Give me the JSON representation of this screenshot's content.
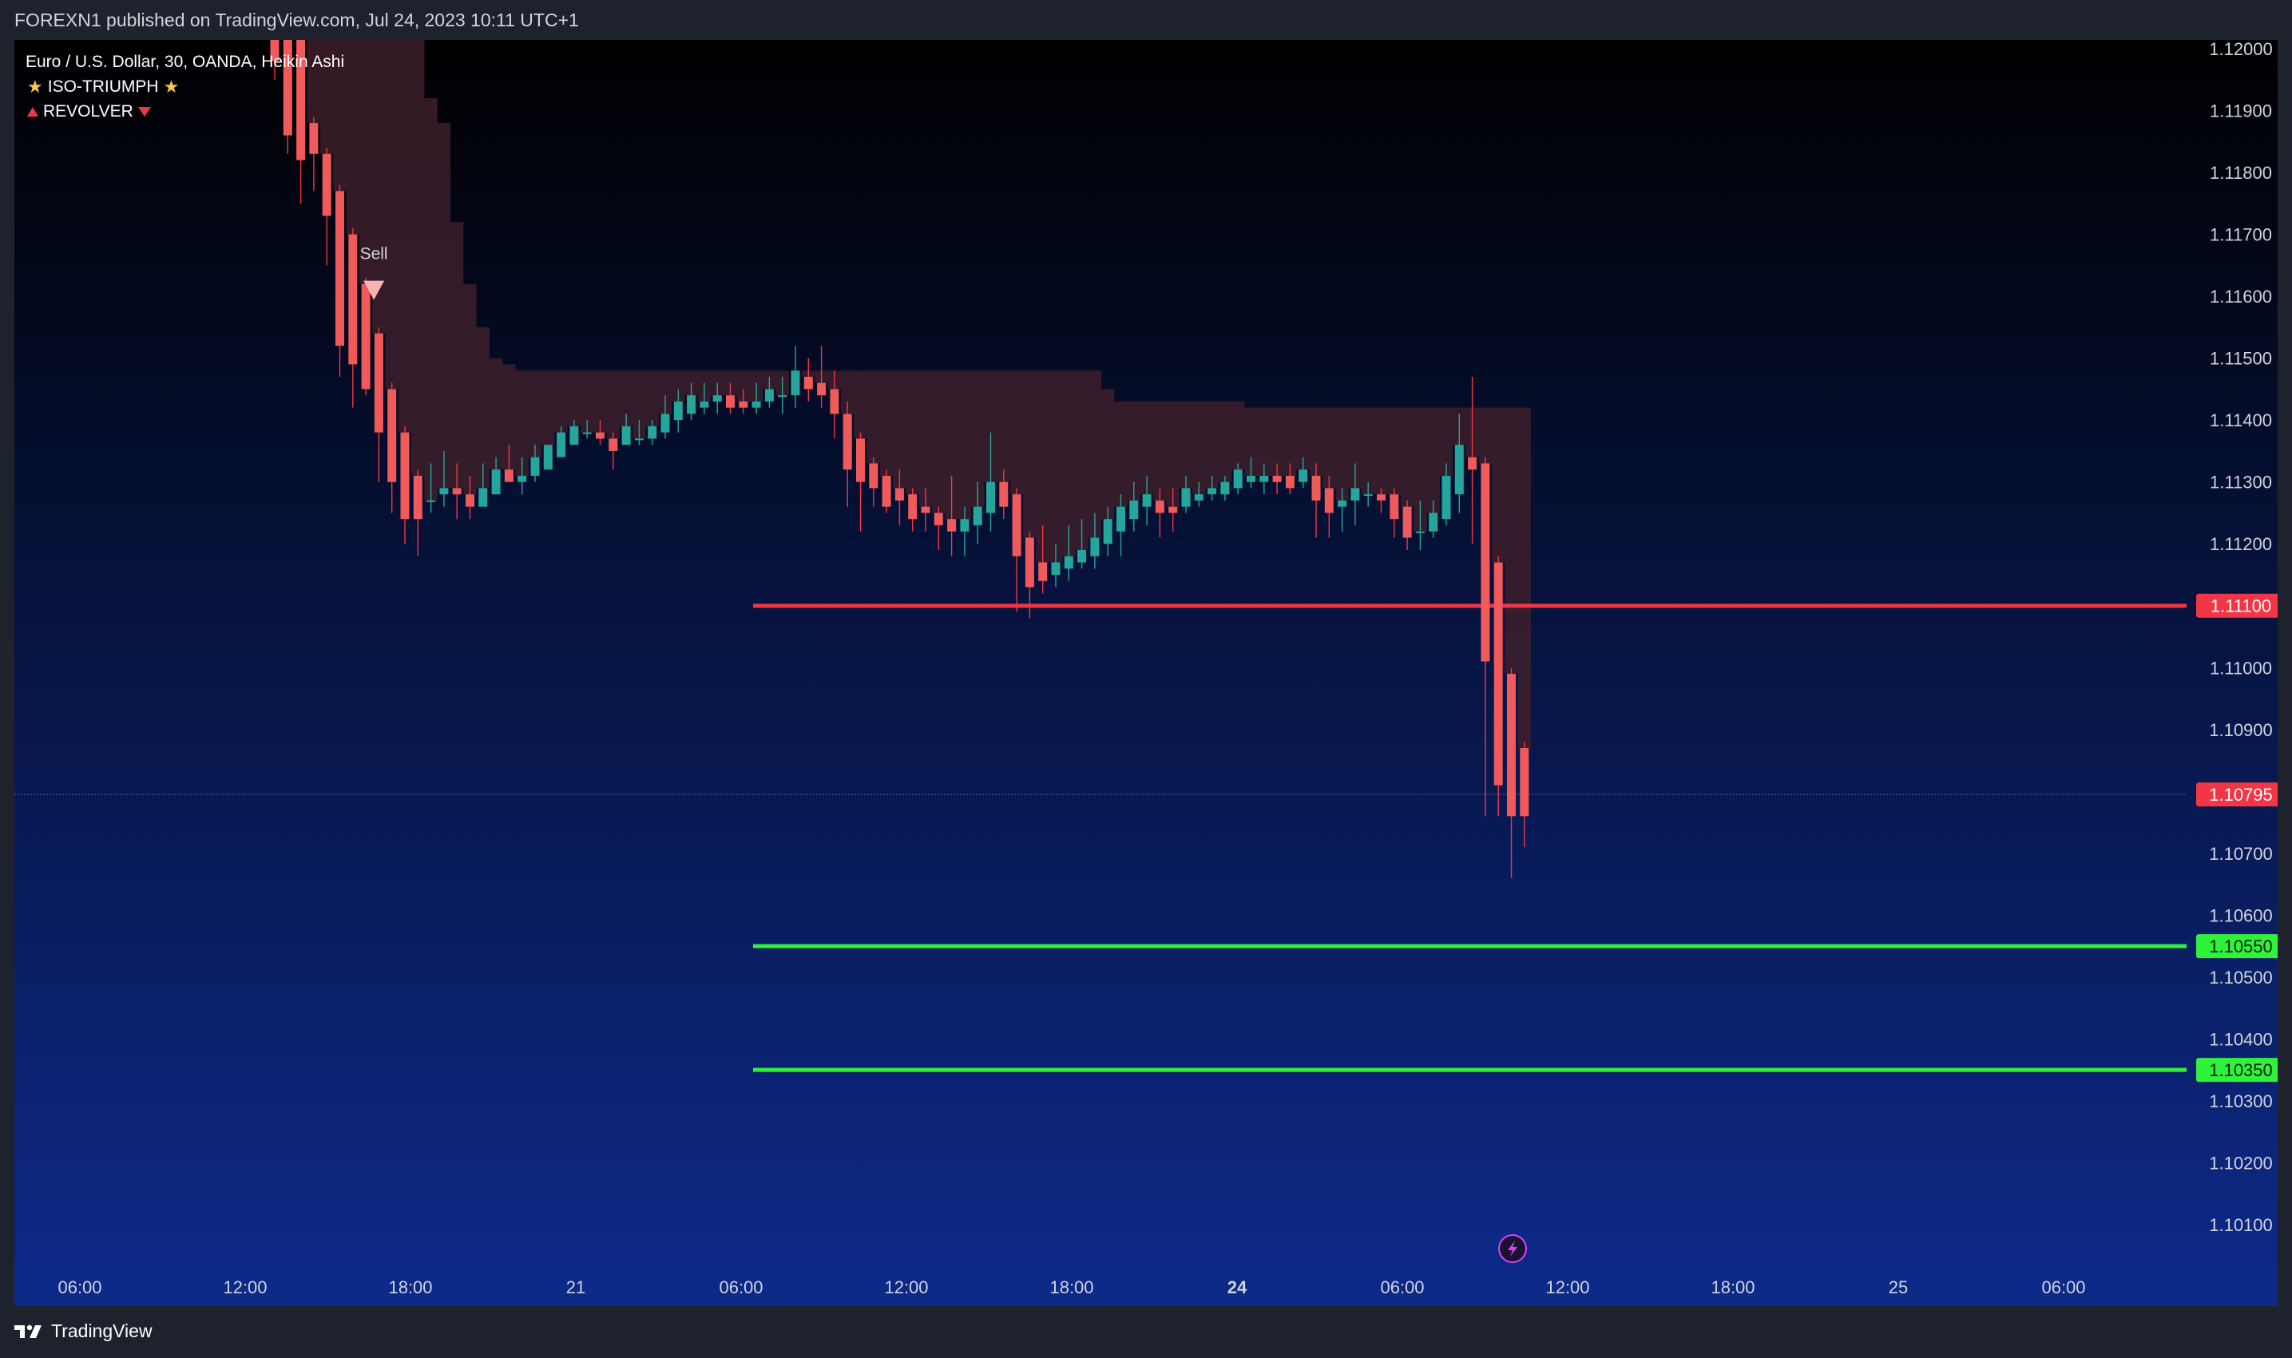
{
  "header": {
    "published": "FOREXN1 published on TradingView.com, Jul 24, 2023 10:11 UTC+1"
  },
  "legend": {
    "symbol": "Euro / U.S. Dollar, 30, OANDA, Heikin Ashi",
    "indicator1": "ISO-TRIUMPH",
    "indicator2": "REVOLVER",
    "indicator1_icon": "star-icon",
    "indicator2_icon": "triangle-icon"
  },
  "footer": {
    "brand": "TradingView"
  },
  "colors": {
    "bull": "#26a69a",
    "bear": "#f23645",
    "bear_body": "#f05a5a",
    "support": "#2ef33a",
    "resistance": "#f23645",
    "cloud": "#3d1f2a",
    "bg_top": "#000000",
    "bg_bottom": "#0d2a8a",
    "price_tag": "#f23645"
  },
  "chart_data": {
    "type": "candlestick",
    "symbol": "EURUSD",
    "interval": "30",
    "source": "OANDA",
    "style": "Heikin Ashi",
    "ylim": [
      1.1002,
      1.1204
    ],
    "y_ticks": [
      "1.12000",
      "1.11900",
      "1.11800",
      "1.11700",
      "1.11600",
      "1.11500",
      "1.11400",
      "1.11300",
      "1.11200",
      "1.11100",
      "1.11000",
      "1.10900",
      "1.10795",
      "1.10700",
      "1.10600",
      "1.10550",
      "1.10500",
      "1.10400",
      "1.10350",
      "1.10300",
      "1.10200",
      "1.10100"
    ],
    "x_tick_labels": [
      "06:00",
      "12:00",
      "18:00",
      "21",
      "06:00",
      "12:00",
      "18:00",
      "24",
      "06:00",
      "12:00",
      "18:00",
      "25",
      "06:00"
    ],
    "x_tick_bold": [
      "24"
    ],
    "current_price": "1.10795",
    "horizontal_lines": [
      {
        "price": 1.111,
        "label": "1.11100",
        "color": "red"
      },
      {
        "price": 1.1055,
        "label": "1.10550",
        "color": "green"
      },
      {
        "price": 1.1035,
        "label": "1.10350",
        "color": "green"
      }
    ],
    "signals": [
      {
        "type": "sell",
        "label": "Sell",
        "bar_index": 7
      }
    ],
    "cloud_top": [
      1.122,
      1.122,
      1.122,
      1.122,
      1.122,
      1.122,
      1.122,
      1.122,
      1.122,
      1.122,
      1.122,
      1.1205,
      1.1192,
      1.1188,
      1.1172,
      1.1162,
      1.1155,
      1.115,
      1.1149,
      1.1148,
      1.1148,
      1.1148,
      1.1148,
      1.1148,
      1.1148,
      1.1148,
      1.1148,
      1.1148,
      1.1148,
      1.1148,
      1.1148,
      1.1148,
      1.1148,
      1.1148,
      1.1148,
      1.1148,
      1.1148,
      1.1148,
      1.1148,
      1.1148,
      1.1148,
      1.1148,
      1.1148,
      1.1148,
      1.1148,
      1.1148,
      1.1148,
      1.1148,
      1.1148,
      1.1148,
      1.1148,
      1.1148,
      1.1148,
      1.1148,
      1.1148,
      1.1148,
      1.1148,
      1.1148,
      1.1148,
      1.1148,
      1.1148,
      1.1148,
      1.1148,
      1.1148,
      1.1145,
      1.1143,
      1.1143,
      1.1143,
      1.1143,
      1.1143,
      1.1143,
      1.1143,
      1.1143,
      1.1143,
      1.1143,
      1.1142,
      1.1142,
      1.1142,
      1.1142,
      1.1142,
      1.1142,
      1.1142,
      1.1142,
      1.1142,
      1.1142,
      1.1142,
      1.1142,
      1.1142,
      1.1142,
      1.1142,
      1.1142,
      1.1142,
      1.1142,
      1.1142,
      1.1142,
      1.1142,
      1.1142,
      1.1142
    ],
    "bars": [
      {
        "o": 1.1205,
        "h": 1.1208,
        "l": 1.1195,
        "c": 1.1198
      },
      {
        "o": 1.1205,
        "h": 1.1206,
        "l": 1.1183,
        "c": 1.1186
      },
      {
        "o": 1.1202,
        "h": 1.1203,
        "l": 1.1175,
        "c": 1.1182
      },
      {
        "o": 1.1188,
        "h": 1.1189,
        "l": 1.1177,
        "c": 1.1183
      },
      {
        "o": 1.1183,
        "h": 1.1184,
        "l": 1.1165,
        "c": 1.1173
      },
      {
        "o": 1.1177,
        "h": 1.1178,
        "l": 1.1147,
        "c": 1.1152
      },
      {
        "o": 1.117,
        "h": 1.1171,
        "l": 1.1142,
        "c": 1.1149
      },
      {
        "o": 1.1162,
        "h": 1.1163,
        "l": 1.1144,
        "c": 1.1145
      },
      {
        "o": 1.1154,
        "h": 1.1155,
        "l": 1.113,
        "c": 1.1138
      },
      {
        "o": 1.1145,
        "h": 1.1146,
        "l": 1.1125,
        "c": 1.113
      },
      {
        "o": 1.1138,
        "h": 1.1139,
        "l": 1.112,
        "c": 1.1124
      },
      {
        "o": 1.1131,
        "h": 1.1132,
        "l": 1.1118,
        "c": 1.1124
      },
      {
        "o": 1.1127,
        "h": 1.1133,
        "l": 1.1125,
        "c": 1.1127
      },
      {
        "o": 1.1128,
        "h": 1.1135,
        "l": 1.1126,
        "c": 1.1129
      },
      {
        "o": 1.1129,
        "h": 1.1133,
        "l": 1.1124,
        "c": 1.1128
      },
      {
        "o": 1.1128,
        "h": 1.1131,
        "l": 1.1124,
        "c": 1.1126
      },
      {
        "o": 1.1126,
        "h": 1.1133,
        "l": 1.1126,
        "c": 1.1129
      },
      {
        "o": 1.1128,
        "h": 1.1134,
        "l": 1.1128,
        "c": 1.1132
      },
      {
        "o": 1.1132,
        "h": 1.1136,
        "l": 1.113,
        "c": 1.113
      },
      {
        "o": 1.113,
        "h": 1.1134,
        "l": 1.1128,
        "c": 1.1131
      },
      {
        "o": 1.1131,
        "h": 1.1136,
        "l": 1.113,
        "c": 1.1134
      },
      {
        "o": 1.1132,
        "h": 1.1136,
        "l": 1.1132,
        "c": 1.1136
      },
      {
        "o": 1.1134,
        "h": 1.1139,
        "l": 1.1134,
        "c": 1.1138
      },
      {
        "o": 1.1136,
        "h": 1.114,
        "l": 1.1136,
        "c": 1.1139
      },
      {
        "o": 1.1138,
        "h": 1.114,
        "l": 1.1137,
        "c": 1.1138
      },
      {
        "o": 1.1138,
        "h": 1.114,
        "l": 1.1136,
        "c": 1.1137
      },
      {
        "o": 1.1137,
        "h": 1.1138,
        "l": 1.1132,
        "c": 1.1135
      },
      {
        "o": 1.1136,
        "h": 1.1141,
        "l": 1.1136,
        "c": 1.1139
      },
      {
        "o": 1.1137,
        "h": 1.114,
        "l": 1.1136,
        "c": 1.1137
      },
      {
        "o": 1.1137,
        "h": 1.114,
        "l": 1.1136,
        "c": 1.1139
      },
      {
        "o": 1.1138,
        "h": 1.1144,
        "l": 1.1137,
        "c": 1.1141
      },
      {
        "o": 1.114,
        "h": 1.1145,
        "l": 1.1138,
        "c": 1.1143
      },
      {
        "o": 1.1141,
        "h": 1.1146,
        "l": 1.114,
        "c": 1.1144
      },
      {
        "o": 1.1142,
        "h": 1.1146,
        "l": 1.1141,
        "c": 1.1143
      },
      {
        "o": 1.1143,
        "h": 1.1146,
        "l": 1.1141,
        "c": 1.1144
      },
      {
        "o": 1.1144,
        "h": 1.1146,
        "l": 1.1141,
        "c": 1.1142
      },
      {
        "o": 1.1143,
        "h": 1.1145,
        "l": 1.1141,
        "c": 1.1142
      },
      {
        "o": 1.1142,
        "h": 1.1146,
        "l": 1.1141,
        "c": 1.1143
      },
      {
        "o": 1.1143,
        "h": 1.1147,
        "l": 1.1142,
        "c": 1.1145
      },
      {
        "o": 1.1144,
        "h": 1.1147,
        "l": 1.1141,
        "c": 1.1144
      },
      {
        "o": 1.1144,
        "h": 1.1152,
        "l": 1.1142,
        "c": 1.1148
      },
      {
        "o": 1.1147,
        "h": 1.115,
        "l": 1.1143,
        "c": 1.1145
      },
      {
        "o": 1.1146,
        "h": 1.1152,
        "l": 1.1142,
        "c": 1.1144
      },
      {
        "o": 1.1145,
        "h": 1.1148,
        "l": 1.1137,
        "c": 1.1141
      },
      {
        "o": 1.1141,
        "h": 1.1143,
        "l": 1.1126,
        "c": 1.1132
      },
      {
        "o": 1.1137,
        "h": 1.1138,
        "l": 1.1122,
        "c": 1.113
      },
      {
        "o": 1.1133,
        "h": 1.1134,
        "l": 1.1126,
        "c": 1.1129
      },
      {
        "o": 1.1131,
        "h": 1.1132,
        "l": 1.1125,
        "c": 1.1126
      },
      {
        "o": 1.1129,
        "h": 1.1132,
        "l": 1.1123,
        "c": 1.1127
      },
      {
        "o": 1.1128,
        "h": 1.1129,
        "l": 1.1122,
        "c": 1.1124
      },
      {
        "o": 1.1126,
        "h": 1.1129,
        "l": 1.1122,
        "c": 1.1125
      },
      {
        "o": 1.1125,
        "h": 1.1126,
        "l": 1.1119,
        "c": 1.1123
      },
      {
        "o": 1.1124,
        "h": 1.1131,
        "l": 1.1118,
        "c": 1.1122
      },
      {
        "o": 1.1122,
        "h": 1.1126,
        "l": 1.1118,
        "c": 1.1124
      },
      {
        "o": 1.1123,
        "h": 1.113,
        "l": 1.112,
        "c": 1.1126
      },
      {
        "o": 1.1125,
        "h": 1.1138,
        "l": 1.1122,
        "c": 1.113
      },
      {
        "o": 1.113,
        "h": 1.1132,
        "l": 1.1124,
        "c": 1.1126
      },
      {
        "o": 1.1128,
        "h": 1.1129,
        "l": 1.1109,
        "c": 1.1118
      },
      {
        "o": 1.1121,
        "h": 1.1122,
        "l": 1.1108,
        "c": 1.1113
      },
      {
        "o": 1.1117,
        "h": 1.1123,
        "l": 1.1112,
        "c": 1.1114
      },
      {
        "o": 1.1115,
        "h": 1.112,
        "l": 1.1113,
        "c": 1.1117
      },
      {
        "o": 1.1116,
        "h": 1.1123,
        "l": 1.1114,
        "c": 1.1118
      },
      {
        "o": 1.1117,
        "h": 1.1124,
        "l": 1.1116,
        "c": 1.1119
      },
      {
        "o": 1.1118,
        "h": 1.1125,
        "l": 1.1116,
        "c": 1.1121
      },
      {
        "o": 1.112,
        "h": 1.1126,
        "l": 1.1118,
        "c": 1.1124
      },
      {
        "o": 1.1122,
        "h": 1.1128,
        "l": 1.1118,
        "c": 1.1126
      },
      {
        "o": 1.1124,
        "h": 1.113,
        "l": 1.1122,
        "c": 1.1127
      },
      {
        "o": 1.1126,
        "h": 1.1131,
        "l": 1.1123,
        "c": 1.1128
      },
      {
        "o": 1.1127,
        "h": 1.1129,
        "l": 1.1121,
        "c": 1.1125
      },
      {
        "o": 1.1126,
        "h": 1.1129,
        "l": 1.1122,
        "c": 1.1125
      },
      {
        "o": 1.1126,
        "h": 1.1131,
        "l": 1.1125,
        "c": 1.1129
      },
      {
        "o": 1.1127,
        "h": 1.113,
        "l": 1.1126,
        "c": 1.1128
      },
      {
        "o": 1.1128,
        "h": 1.1131,
        "l": 1.1127,
        "c": 1.1129
      },
      {
        "o": 1.1128,
        "h": 1.1131,
        "l": 1.1127,
        "c": 1.113
      },
      {
        "o": 1.1129,
        "h": 1.1133,
        "l": 1.1128,
        "c": 1.1132
      },
      {
        "o": 1.113,
        "h": 1.1134,
        "l": 1.1129,
        "c": 1.1131
      },
      {
        "o": 1.113,
        "h": 1.1133,
        "l": 1.1128,
        "c": 1.1131
      },
      {
        "o": 1.1131,
        "h": 1.1133,
        "l": 1.1128,
        "c": 1.113
      },
      {
        "o": 1.1131,
        "h": 1.1133,
        "l": 1.1128,
        "c": 1.1129
      },
      {
        "o": 1.113,
        "h": 1.1134,
        "l": 1.1129,
        "c": 1.1132
      },
      {
        "o": 1.1131,
        "h": 1.1133,
        "l": 1.1121,
        "c": 1.1127
      },
      {
        "o": 1.1129,
        "h": 1.1131,
        "l": 1.1121,
        "c": 1.1125
      },
      {
        "o": 1.1126,
        "h": 1.1129,
        "l": 1.1122,
        "c": 1.1127
      },
      {
        "o": 1.1127,
        "h": 1.1133,
        "l": 1.1123,
        "c": 1.1129
      },
      {
        "o": 1.1128,
        "h": 1.113,
        "l": 1.1126,
        "c": 1.1128
      },
      {
        "o": 1.1128,
        "h": 1.1129,
        "l": 1.1125,
        "c": 1.1127
      },
      {
        "o": 1.1128,
        "h": 1.1129,
        "l": 1.1121,
        "c": 1.1124
      },
      {
        "o": 1.1126,
        "h": 1.1127,
        "l": 1.1119,
        "c": 1.1121
      },
      {
        "o": 1.1122,
        "h": 1.1127,
        "l": 1.1119,
        "c": 1.1122
      },
      {
        "o": 1.1122,
        "h": 1.1127,
        "l": 1.1121,
        "c": 1.1125
      },
      {
        "o": 1.1124,
        "h": 1.1133,
        "l": 1.1123,
        "c": 1.1131
      },
      {
        "o": 1.1128,
        "h": 1.1141,
        "l": 1.1125,
        "c": 1.1136
      },
      {
        "o": 1.1134,
        "h": 1.1147,
        "l": 1.112,
        "c": 1.1132
      },
      {
        "o": 1.1133,
        "h": 1.1134,
        "l": 1.1076,
        "c": 1.1101
      },
      {
        "o": 1.1117,
        "h": 1.1118,
        "l": 1.1076,
        "c": 1.1081
      },
      {
        "o": 1.1099,
        "h": 1.11,
        "l": 1.1066,
        "c": 1.1076
      },
      {
        "o": 1.1087,
        "h": 1.1088,
        "l": 1.1071,
        "c": 1.1076
      }
    ]
  }
}
